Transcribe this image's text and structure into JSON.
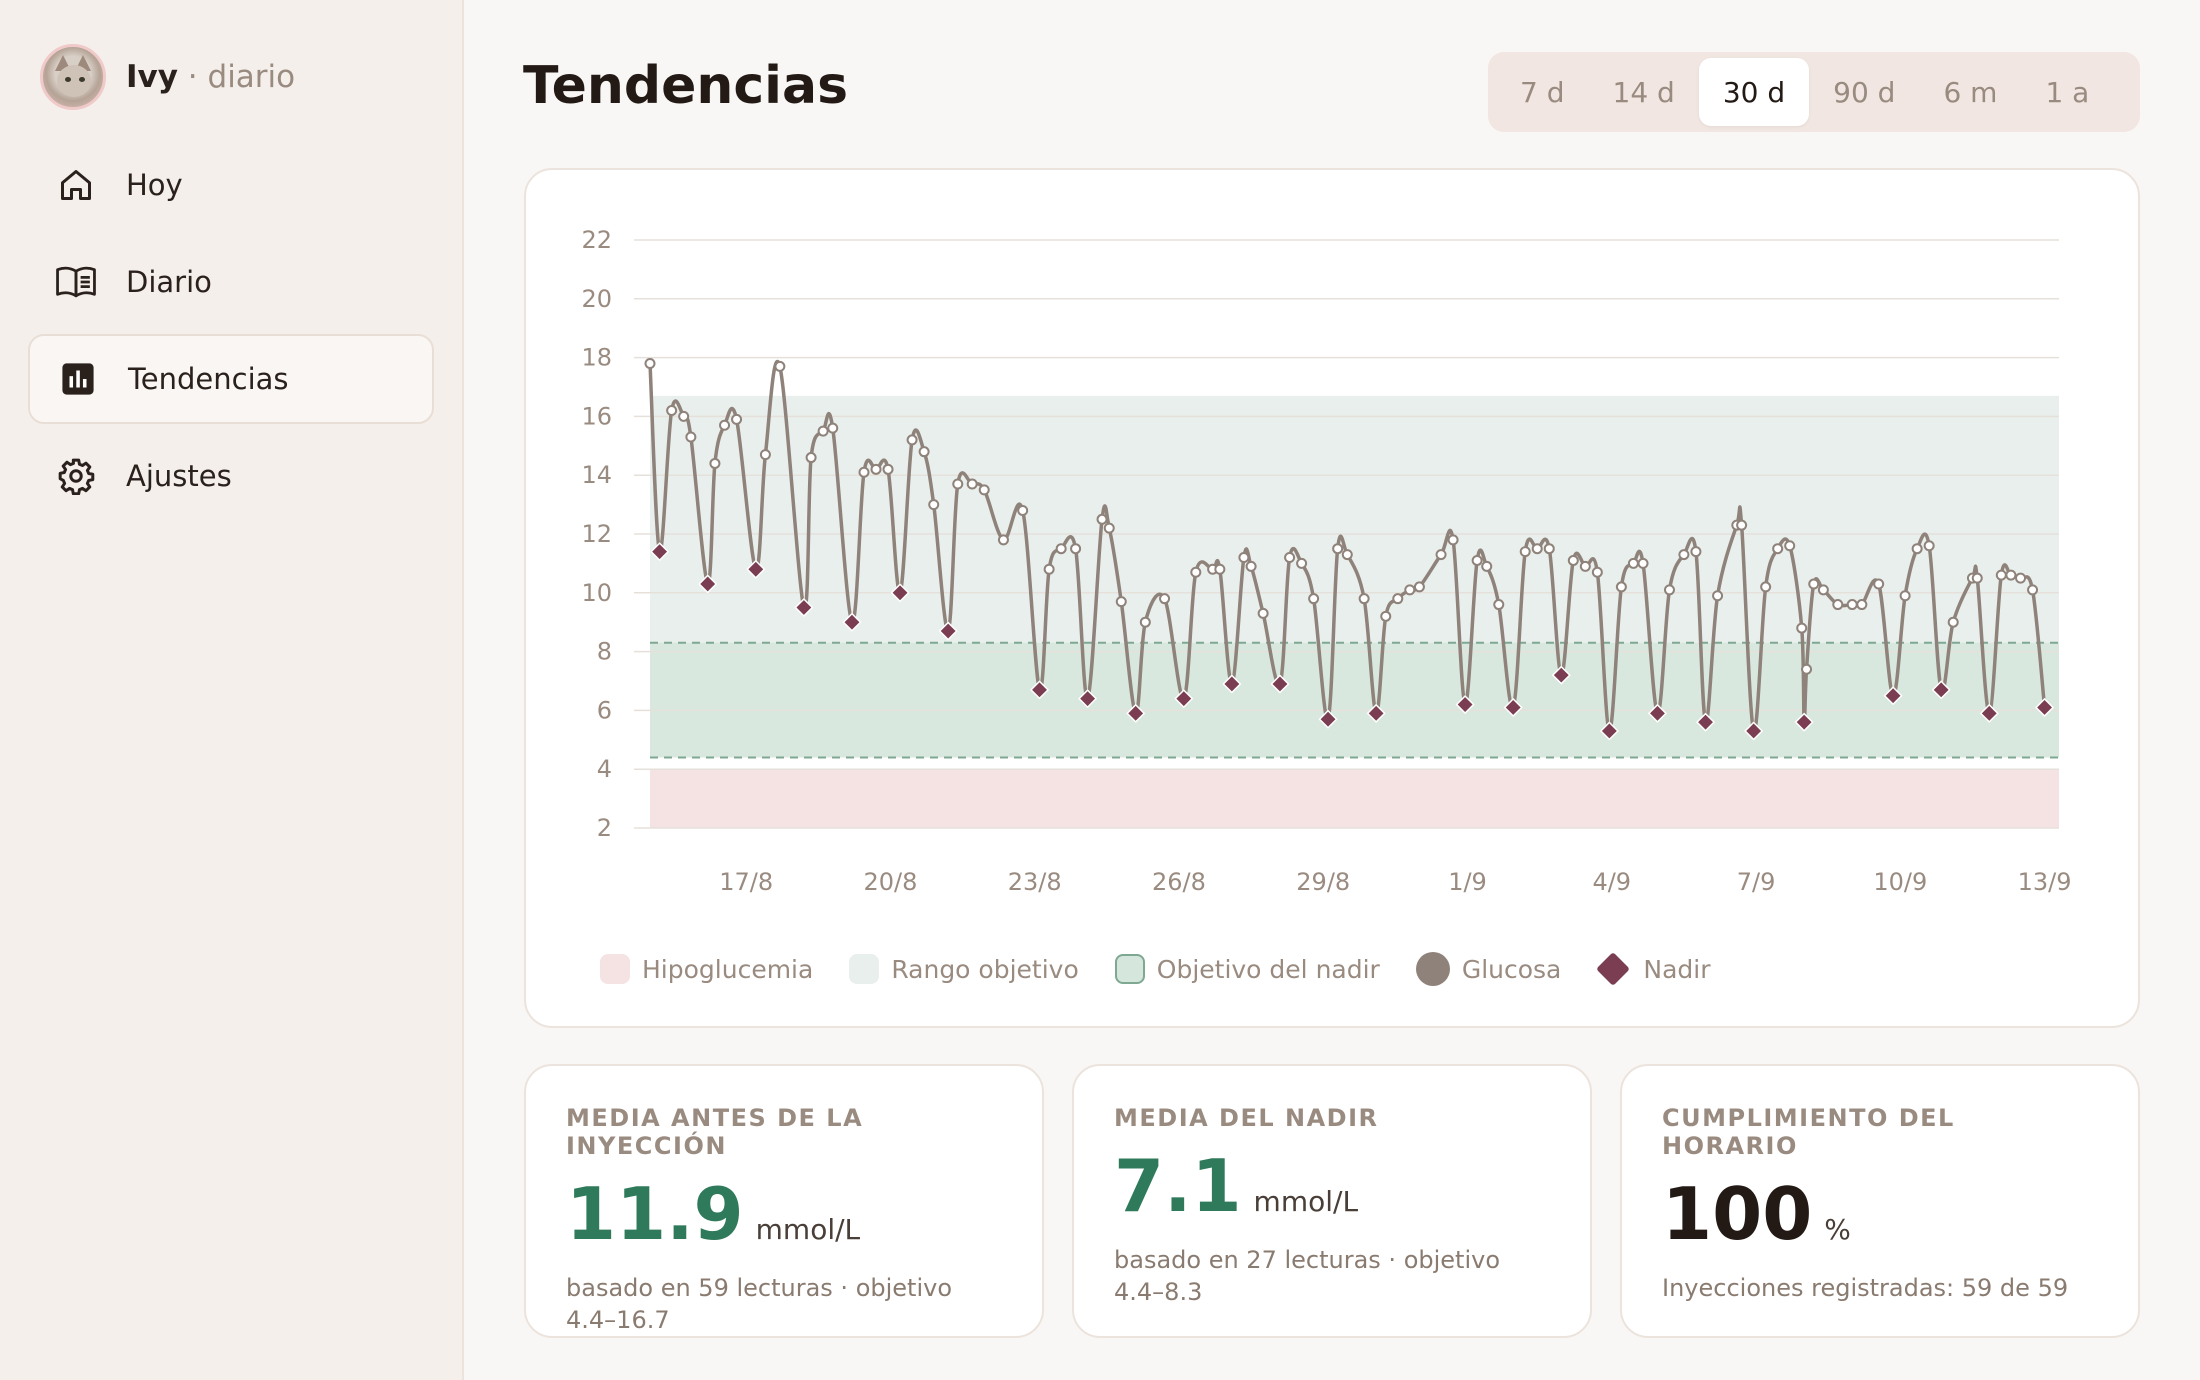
{
  "sidebar": {
    "brand_name": "Ivy",
    "brand_sub": " · diario",
    "items": [
      {
        "label": "Hoy",
        "icon": "home-icon",
        "active": false
      },
      {
        "label": "Diario",
        "icon": "book-icon",
        "active": false
      },
      {
        "label": "Tendencias",
        "icon": "bar-chart-icon",
        "active": true
      },
      {
        "label": "Ajustes",
        "icon": "gear-icon",
        "active": false
      }
    ]
  },
  "header": {
    "title": "Tendencias",
    "ranges": [
      "7 d",
      "14 d",
      "30 d",
      "90 d",
      "6 m",
      "1 a"
    ],
    "active_range": "30 d"
  },
  "colors": {
    "glucose": "#8e827a",
    "nadir": "#7a3d52",
    "target_band": "#e9efec",
    "nadir_band": "#d5e6dc",
    "hypo_band": "#f5e3e3",
    "accent_green": "#2f7a5b"
  },
  "chart_data": {
    "type": "line",
    "title": "",
    "xlabel": "",
    "ylabel": "",
    "ylim": [
      2,
      22
    ],
    "yticks": [
      2,
      4,
      6,
      8,
      10,
      12,
      14,
      16,
      18,
      20,
      22
    ],
    "xlim": [
      15.0,
      44.3
    ],
    "xticks": [
      {
        "x": 17,
        "label": "17/8"
      },
      {
        "x": 20,
        "label": "20/8"
      },
      {
        "x": 23,
        "label": "23/8"
      },
      {
        "x": 26,
        "label": "26/8"
      },
      {
        "x": 29,
        "label": "29/8"
      },
      {
        "x": 32,
        "label": "1/9"
      },
      {
        "x": 35,
        "label": "4/9"
      },
      {
        "x": 38,
        "label": "7/9"
      },
      {
        "x": 41,
        "label": "10/9"
      },
      {
        "x": 44,
        "label": "13/9"
      }
    ],
    "bands": [
      {
        "name": "Hipoglucemia",
        "from": 2,
        "to": 4
      },
      {
        "name": "Rango objetivo",
        "from": 4.4,
        "to": 16.7
      },
      {
        "name": "Objetivo del nadir",
        "from": 4.4,
        "to": 8.3
      }
    ],
    "grid": true,
    "legend_position": "bottom-left",
    "legend": [
      "Hipoglucemia",
      "Rango objetivo",
      "Objetivo del nadir",
      "Glucosa",
      "Nadir"
    ],
    "series": [
      {
        "name": "Glucosa",
        "points": [
          [
            15.0,
            17.8
          ],
          [
            15.2,
            11.4
          ],
          [
            15.45,
            16.2
          ],
          [
            15.7,
            16.0
          ],
          [
            15.85,
            15.3
          ],
          [
            16.2,
            10.3
          ],
          [
            16.35,
            14.4
          ],
          [
            16.55,
            15.7
          ],
          [
            16.8,
            15.9
          ],
          [
            17.2,
            10.8
          ],
          [
            17.4,
            14.7
          ],
          [
            17.7,
            17.7
          ],
          [
            18.2,
            9.5
          ],
          [
            18.35,
            14.6
          ],
          [
            18.6,
            15.5
          ],
          [
            18.8,
            15.6
          ],
          [
            19.2,
            9.0
          ],
          [
            19.45,
            14.1
          ],
          [
            19.7,
            14.2
          ],
          [
            19.95,
            14.2
          ],
          [
            20.2,
            10.0
          ],
          [
            20.45,
            15.2
          ],
          [
            20.7,
            14.8
          ],
          [
            20.9,
            13.0
          ],
          [
            21.2,
            8.7
          ],
          [
            21.4,
            13.7
          ],
          [
            21.7,
            13.7
          ],
          [
            21.95,
            13.5
          ],
          [
            22.35,
            11.8
          ],
          [
            22.75,
            12.8
          ],
          [
            23.1,
            6.7
          ],
          [
            23.3,
            10.8
          ],
          [
            23.55,
            11.5
          ],
          [
            23.85,
            11.5
          ],
          [
            24.1,
            6.4
          ],
          [
            24.4,
            12.5
          ],
          [
            24.55,
            12.2
          ],
          [
            24.8,
            9.7
          ],
          [
            25.1,
            5.9
          ],
          [
            25.3,
            9.0
          ],
          [
            25.7,
            9.8
          ],
          [
            26.1,
            6.4
          ],
          [
            26.35,
            10.7
          ],
          [
            26.7,
            10.8
          ],
          [
            26.85,
            10.8
          ],
          [
            27.1,
            6.9
          ],
          [
            27.35,
            11.2
          ],
          [
            27.5,
            10.9
          ],
          [
            27.75,
            9.3
          ],
          [
            28.1,
            6.9
          ],
          [
            28.3,
            11.2
          ],
          [
            28.55,
            11.0
          ],
          [
            28.8,
            9.8
          ],
          [
            29.1,
            5.7
          ],
          [
            29.3,
            11.5
          ],
          [
            29.5,
            11.3
          ],
          [
            29.85,
            9.8
          ],
          [
            30.1,
            5.9
          ],
          [
            30.3,
            9.2
          ],
          [
            30.55,
            9.8
          ],
          [
            30.8,
            10.1
          ],
          [
            31.0,
            10.2
          ],
          [
            31.45,
            11.3
          ],
          [
            31.7,
            11.8
          ],
          [
            31.95,
            6.2
          ],
          [
            32.2,
            11.1
          ],
          [
            32.4,
            10.9
          ],
          [
            32.65,
            9.6
          ],
          [
            32.95,
            6.1
          ],
          [
            33.2,
            11.4
          ],
          [
            33.45,
            11.5
          ],
          [
            33.7,
            11.5
          ],
          [
            33.95,
            7.2
          ],
          [
            34.2,
            11.1
          ],
          [
            34.45,
            10.9
          ],
          [
            34.7,
            10.7
          ],
          [
            34.95,
            5.3
          ],
          [
            35.2,
            10.2
          ],
          [
            35.45,
            11.0
          ],
          [
            35.65,
            11.0
          ],
          [
            35.95,
            5.9
          ],
          [
            36.2,
            10.1
          ],
          [
            36.5,
            11.3
          ],
          [
            36.75,
            11.4
          ],
          [
            36.95,
            5.6
          ],
          [
            37.2,
            9.9
          ],
          [
            37.6,
            12.3
          ],
          [
            37.7,
            12.3
          ],
          [
            37.95,
            5.3
          ],
          [
            38.2,
            10.2
          ],
          [
            38.45,
            11.5
          ],
          [
            38.7,
            11.6
          ],
          [
            38.95,
            8.8
          ],
          [
            39.0,
            5.6
          ],
          [
            39.05,
            7.4
          ],
          [
            39.2,
            10.3
          ],
          [
            39.4,
            10.1
          ],
          [
            39.7,
            9.6
          ],
          [
            40.0,
            9.6
          ],
          [
            40.2,
            9.6
          ],
          [
            40.55,
            10.3
          ],
          [
            40.85,
            6.5
          ],
          [
            41.1,
            9.9
          ],
          [
            41.35,
            11.5
          ],
          [
            41.6,
            11.6
          ],
          [
            41.85,
            6.7
          ],
          [
            42.1,
            9.0
          ],
          [
            42.5,
            10.5
          ],
          [
            42.6,
            10.5
          ],
          [
            42.85,
            5.9
          ],
          [
            43.1,
            10.6
          ],
          [
            43.3,
            10.6
          ],
          [
            43.5,
            10.5
          ],
          [
            43.75,
            10.1
          ],
          [
            44.0,
            6.1
          ]
        ]
      },
      {
        "name": "Nadir",
        "points": [
          [
            15.2,
            11.4
          ],
          [
            16.2,
            10.3
          ],
          [
            17.2,
            10.8
          ],
          [
            18.2,
            9.5
          ],
          [
            19.2,
            9.0
          ],
          [
            20.2,
            10.0
          ],
          [
            21.2,
            8.7
          ],
          [
            23.1,
            6.7
          ],
          [
            24.1,
            6.4
          ],
          [
            25.1,
            5.9
          ],
          [
            26.1,
            6.4
          ],
          [
            27.1,
            6.9
          ],
          [
            28.1,
            6.9
          ],
          [
            29.1,
            5.7
          ],
          [
            30.1,
            5.9
          ],
          [
            31.95,
            6.2
          ],
          [
            32.95,
            6.1
          ],
          [
            33.95,
            7.2
          ],
          [
            34.95,
            5.3
          ],
          [
            35.95,
            5.9
          ],
          [
            36.95,
            5.6
          ],
          [
            37.95,
            5.3
          ],
          [
            39.0,
            5.6
          ],
          [
            40.85,
            6.5
          ],
          [
            41.85,
            6.7
          ],
          [
            42.85,
            5.9
          ],
          [
            44.0,
            6.1
          ]
        ]
      }
    ]
  },
  "stats": [
    {
      "label": "MEDIA ANTES DE LA INYECCIÓN",
      "value": "11.9",
      "unit": "mmol/L",
      "note": "basado en 59 lecturas · objetivo 4.4–16.7"
    },
    {
      "label": "MEDIA DEL NADIR",
      "value": "7.1",
      "unit": "mmol/L",
      "note": "basado en 27 lecturas · objetivo 4.4–8.3"
    },
    {
      "label": "CUMPLIMIENTO DEL HORARIO",
      "value": "100",
      "unit": "%",
      "note": "Inyecciones registradas: 59 de 59"
    }
  ]
}
